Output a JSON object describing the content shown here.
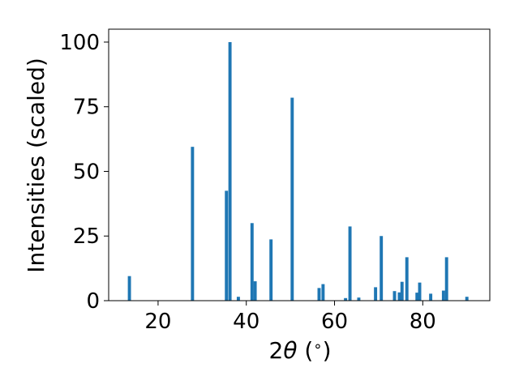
{
  "chart_data": {
    "type": "bar",
    "xlabel_main": "2",
    "xlabel_theta": "θ",
    "xlabel_unit_open": " (",
    "xlabel_unit_sym": "∘",
    "xlabel_unit_close": ")",
    "ylabel": "Intensities (scaled)",
    "xlim": [
      8.8,
      95.2
    ],
    "ylim": [
      0,
      105
    ],
    "x_ticks": [
      20,
      40,
      60,
      80
    ],
    "y_ticks": [
      0,
      25,
      50,
      75,
      100
    ],
    "bar_width_deg": 0.72,
    "bar_color": "#1f77b4",
    "grid": false,
    "peaks": [
      {
        "x": 13.5,
        "y": 9.5
      },
      {
        "x": 27.8,
        "y": 59.5
      },
      {
        "x": 35.5,
        "y": 42.5
      },
      {
        "x": 36.3,
        "y": 100
      },
      {
        "x": 38.2,
        "y": 1.5
      },
      {
        "x": 41.3,
        "y": 30
      },
      {
        "x": 42.0,
        "y": 7.5
      },
      {
        "x": 45.6,
        "y": 23.7
      },
      {
        "x": 50.4,
        "y": 78.5
      },
      {
        "x": 56.5,
        "y": 4.9
      },
      {
        "x": 57.4,
        "y": 6.4
      },
      {
        "x": 62.5,
        "y": 1.0
      },
      {
        "x": 63.5,
        "y": 28.7
      },
      {
        "x": 65.5,
        "y": 1.2
      },
      {
        "x": 69.3,
        "y": 5.2
      },
      {
        "x": 70.6,
        "y": 25.0
      },
      {
        "x": 73.6,
        "y": 3.7
      },
      {
        "x": 74.7,
        "y": 3.2
      },
      {
        "x": 75.3,
        "y": 7.3
      },
      {
        "x": 76.4,
        "y": 16.8
      },
      {
        "x": 78.7,
        "y": 3.1
      },
      {
        "x": 79.3,
        "y": 7.0
      },
      {
        "x": 81.8,
        "y": 2.7
      },
      {
        "x": 84.7,
        "y": 3.9
      },
      {
        "x": 85.4,
        "y": 16.8
      },
      {
        "x": 90.0,
        "y": 1.5
      }
    ]
  }
}
